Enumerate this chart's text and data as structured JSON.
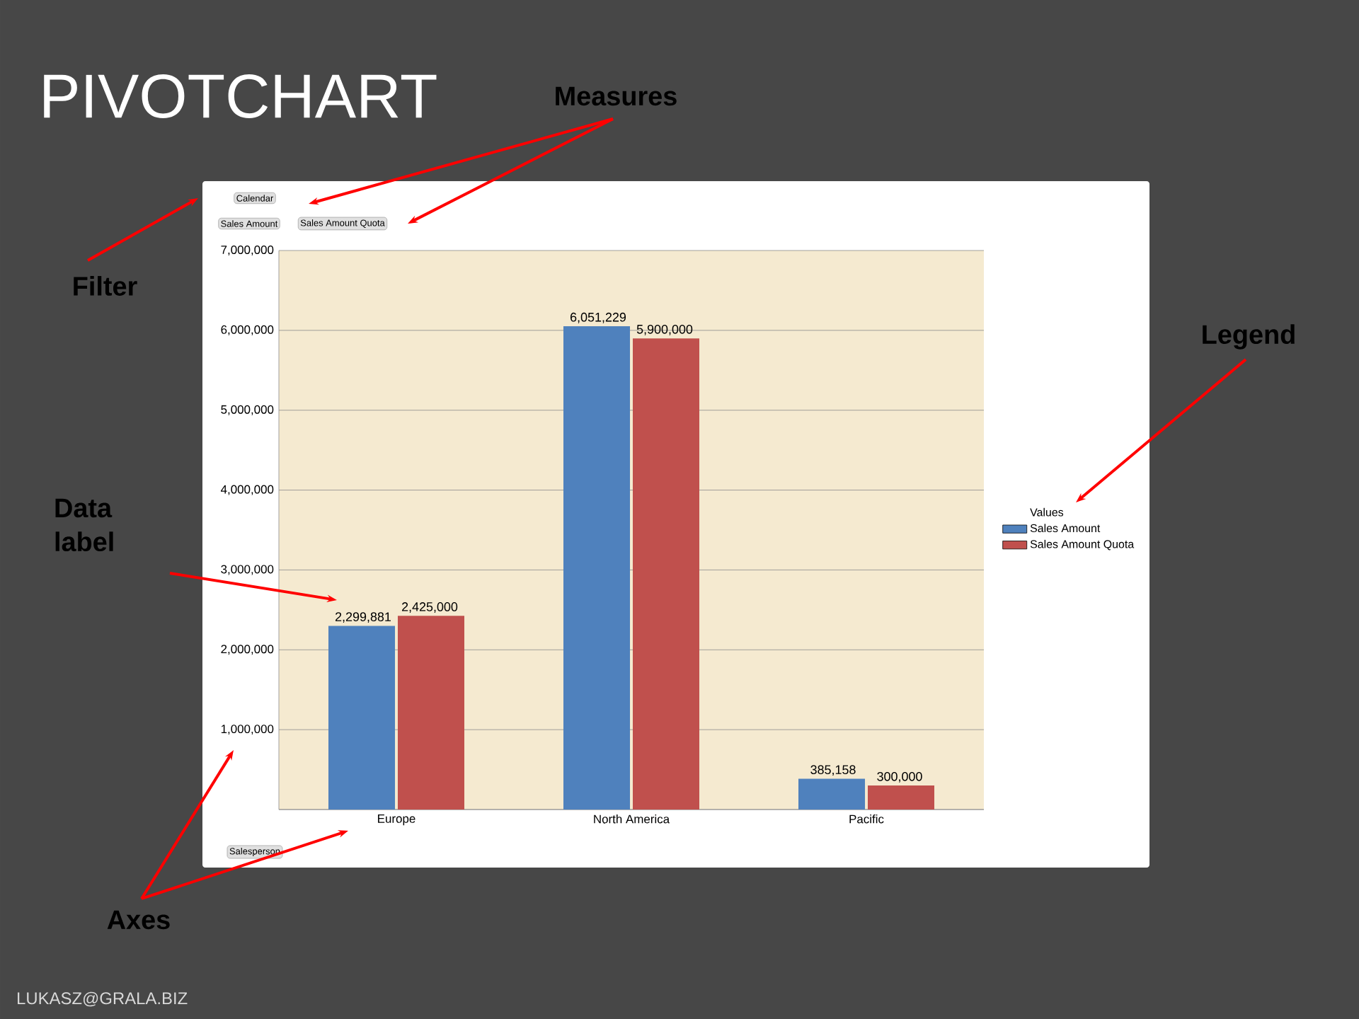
{
  "chart_data": {
    "type": "bar",
    "title": "PIVOTCHART",
    "categories": [
      "Europe",
      "North America",
      "Pacific"
    ],
    "series": [
      {
        "name": "Sales Amount",
        "color": "#4f81bd",
        "values": [
          2299881,
          6051229,
          385158
        ],
        "value_labels": [
          "2,299,881",
          "6,051,229",
          "385,158"
        ]
      },
      {
        "name": "Sales Amount Quota",
        "color": "#c0504d",
        "values": [
          2425000,
          5900000,
          300000
        ],
        "value_labels": [
          "2,425,000",
          "5,900,000",
          "300,000"
        ]
      }
    ],
    "ylim": [
      0,
      7000000
    ],
    "yticks": [
      {
        "value": 0,
        "label": null
      },
      {
        "value": 1000000,
        "label": "1,000,000"
      },
      {
        "value": 2000000,
        "label": "2,000,000"
      },
      {
        "value": 3000000,
        "label": "3,000,000"
      },
      {
        "value": 4000000,
        "label": "4,000,000"
      },
      {
        "value": 5000000,
        "label": "5,000,000"
      },
      {
        "value": 6000000,
        "label": "6,000,000"
      },
      {
        "value": 7000000,
        "label": "7,000,000"
      }
    ],
    "grid": "y",
    "legend": "right",
    "legend_title": "Values",
    "annotations": [
      "Measures",
      "Filter",
      "Legend",
      "Data label",
      "Axes",
      "Calendar",
      "Sales Amount",
      "Sales Amount Quota",
      "Salesperson",
      "LUKASZ@GRALA.BIZ"
    ]
  }
}
